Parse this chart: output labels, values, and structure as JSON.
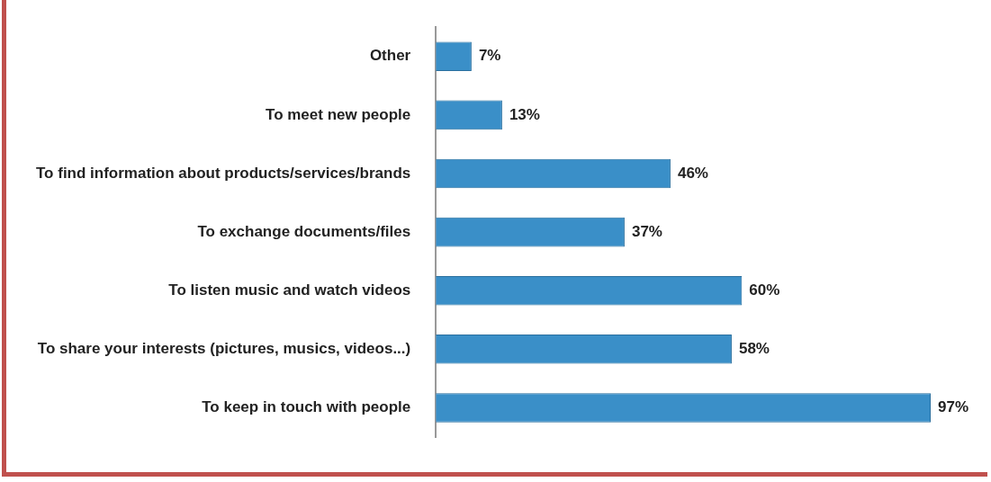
{
  "chart_data": {
    "type": "bar",
    "orientation": "horizontal",
    "categories": [
      "Other",
      "To meet new people",
      "To find information about products/services/brands",
      "To exchange documents/files",
      "To listen music and watch videos",
      "To share your interests (pictures, musics, videos...)",
      "To keep in touch with people"
    ],
    "values": [
      7,
      13,
      46,
      37,
      60,
      58,
      97
    ],
    "value_labels": [
      "7%",
      "13%",
      "46%",
      "37%",
      "60%",
      "58%",
      "97%"
    ],
    "color": "#3a8fc8"
  }
}
